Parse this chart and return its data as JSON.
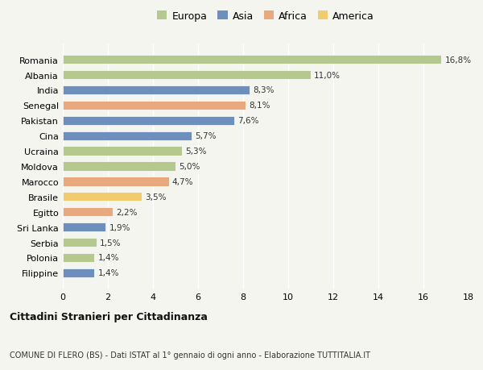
{
  "countries": [
    "Romania",
    "Albania",
    "India",
    "Senegal",
    "Pakistan",
    "Cina",
    "Ucraina",
    "Moldova",
    "Marocco",
    "Brasile",
    "Egitto",
    "Sri Lanka",
    "Serbia",
    "Polonia",
    "Filippine"
  ],
  "values": [
    16.8,
    11.0,
    8.3,
    8.1,
    7.6,
    5.7,
    5.3,
    5.0,
    4.7,
    3.5,
    2.2,
    1.9,
    1.5,
    1.4,
    1.4
  ],
  "labels": [
    "16,8%",
    "11,0%",
    "8,3%",
    "8,1%",
    "7,6%",
    "5,7%",
    "5,3%",
    "5,0%",
    "4,7%",
    "3,5%",
    "2,2%",
    "1,9%",
    "1,5%",
    "1,4%",
    "1,4%"
  ],
  "continents": [
    "Europa",
    "Europa",
    "Asia",
    "Africa",
    "Asia",
    "Asia",
    "Europa",
    "Europa",
    "Africa",
    "America",
    "Africa",
    "Asia",
    "Europa",
    "Europa",
    "Asia"
  ],
  "colors": {
    "Europa": "#b5c98e",
    "Asia": "#6d8fbe",
    "Africa": "#e8a97e",
    "America": "#f0cc6e"
  },
  "legend_order": [
    "Europa",
    "Asia",
    "Africa",
    "America"
  ],
  "xlim": [
    0,
    18
  ],
  "xticks": [
    0,
    2,
    4,
    6,
    8,
    10,
    12,
    14,
    16,
    18
  ],
  "title1": "Cittadini Stranieri per Cittadinanza",
  "title2": "COMUNE DI FLERO (BS) - Dati ISTAT al 1° gennaio di ogni anno - Elaborazione TUTTITALIA.IT",
  "background_color": "#f5f5f0",
  "bar_height": 0.6
}
